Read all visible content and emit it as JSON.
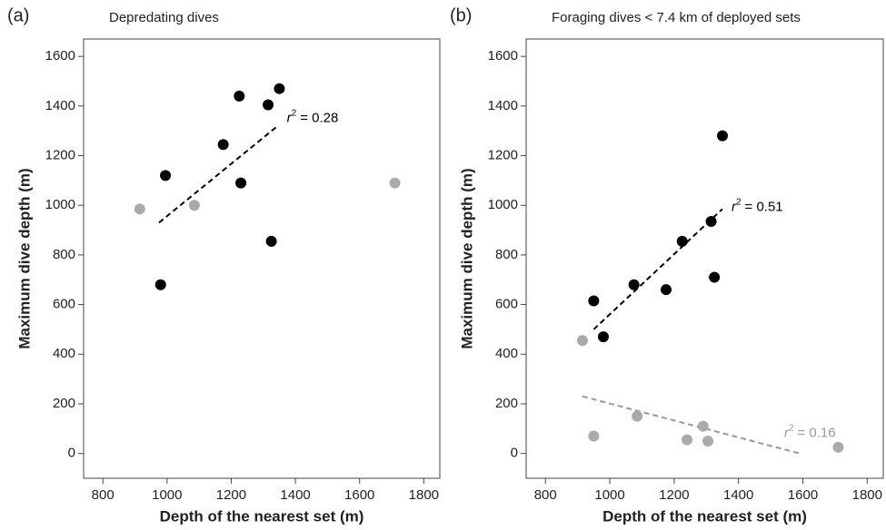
{
  "chart_data": [
    {
      "type": "scatter",
      "panel": "(a)",
      "title": "Depredating dives",
      "xlabel": "Depth of the nearest set (m)",
      "ylabel": "Maximum dive depth (m)",
      "xlim": [
        740,
        1850
      ],
      "ylim": [
        -100,
        1670
      ],
      "xticks": [
        800,
        1000,
        1200,
        1400,
        1600,
        1800
      ],
      "yticks": [
        0,
        200,
        400,
        600,
        800,
        1000,
        1200,
        1400,
        1600
      ],
      "series": [
        {
          "color": "#000000",
          "x": [
            980,
            995,
            1175,
            1225,
            1230,
            1315,
            1325,
            1350
          ],
          "y": [
            680,
            1120,
            1245,
            1440,
            1090,
            1405,
            855,
            1470
          ]
        },
        {
          "color": "#aaaaaa",
          "x": [
            915,
            1085,
            1710
          ],
          "y": [
            985,
            1000,
            1090
          ]
        }
      ],
      "trend_lines": [
        {
          "color": "#000000",
          "x": [
            975,
            1345
          ],
          "y": [
            930,
            1320
          ],
          "annotation": {
            "symbol": "r",
            "power": "2",
            "text": "= 0.28"
          }
        }
      ]
    },
    {
      "type": "scatter",
      "panel": "(b)",
      "title": "Foraging dives < 7.4 km of deployed sets",
      "xlabel": "Depth of the nearest set (m)",
      "ylabel": "Maximum dive depth (m)",
      "xlim": [
        740,
        1850
      ],
      "ylim": [
        -100,
        1670
      ],
      "xticks": [
        800,
        1000,
        1200,
        1400,
        1600,
        1800
      ],
      "yticks": [
        0,
        200,
        400,
        600,
        800,
        1000,
        1200,
        1400,
        1600
      ],
      "series": [
        {
          "color": "#000000",
          "x": [
            950,
            980,
            1075,
            1175,
            1225,
            1315,
            1325,
            1350
          ],
          "y": [
            615,
            470,
            680,
            660,
            855,
            935,
            710,
            1280
          ]
        },
        {
          "color": "#aaaaaa",
          "x": [
            915,
            950,
            1085,
            1240,
            1290,
            1305,
            1710
          ],
          "y": [
            455,
            70,
            150,
            55,
            110,
            50,
            25
          ]
        }
      ],
      "trend_lines": [
        {
          "color": "#000000",
          "x": [
            950,
            1350
          ],
          "y": [
            500,
            985
          ],
          "annotation": {
            "symbol": "r",
            "power": "2",
            "text": "= 0.51"
          }
        },
        {
          "color": "#999999",
          "x": [
            915,
            1590
          ],
          "y": [
            230,
            0
          ],
          "annotation": {
            "symbol": "r",
            "power": "2",
            "text": "= 0.16"
          }
        }
      ]
    }
  ]
}
